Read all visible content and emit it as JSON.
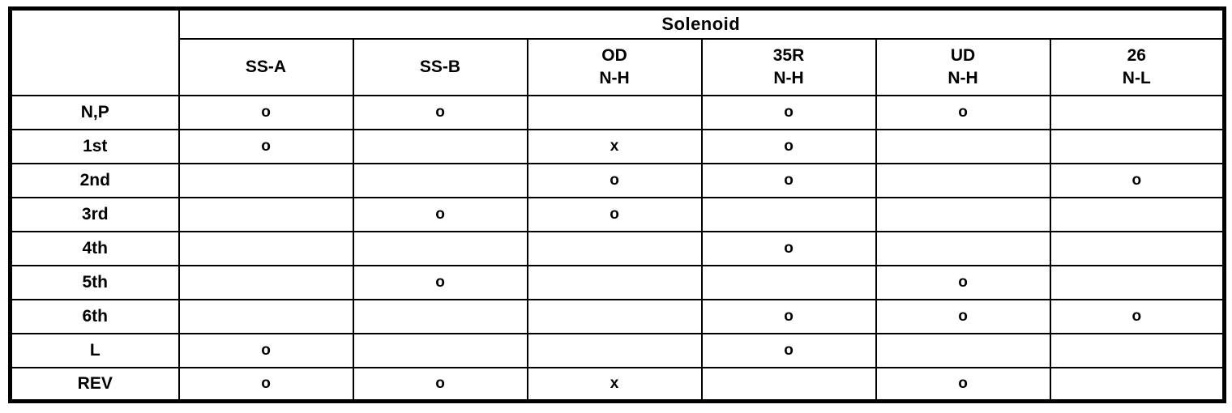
{
  "page": {
    "background_color": "#ffffff",
    "border_color": "#000000"
  },
  "table": {
    "group_header": "Solenoid",
    "corner_label": "",
    "columns": [
      {
        "line1": "SS-A",
        "line2": ""
      },
      {
        "line1": "SS-B",
        "line2": ""
      },
      {
        "line1": "OD",
        "line2": "N-H"
      },
      {
        "line1": "35R",
        "line2": "N-H"
      },
      {
        "line1": "UD",
        "line2": "N-H"
      },
      {
        "line1": "26",
        "line2": "N-L"
      }
    ],
    "rows": [
      {
        "label": "N,P",
        "marks": [
          "o",
          "o",
          "",
          "o",
          "o",
          ""
        ]
      },
      {
        "label": "1st",
        "marks": [
          "o",
          "",
          "x",
          "o",
          "",
          ""
        ]
      },
      {
        "label": "2nd",
        "marks": [
          "",
          "",
          "o",
          "o",
          "",
          "o"
        ]
      },
      {
        "label": "3rd",
        "marks": [
          "",
          "o",
          "o",
          "",
          "",
          ""
        ]
      },
      {
        "label": "4th",
        "marks": [
          "",
          "",
          "",
          "o",
          "",
          ""
        ]
      },
      {
        "label": "5th",
        "marks": [
          "",
          "o",
          "",
          "",
          "o",
          ""
        ]
      },
      {
        "label": "6th",
        "marks": [
          "",
          "",
          "",
          "o",
          "o",
          "o"
        ]
      },
      {
        "label": "L",
        "marks": [
          "o",
          "",
          "",
          "o",
          "",
          ""
        ]
      },
      {
        "label": "REV",
        "marks": [
          "o",
          "o",
          "x",
          "",
          "o",
          ""
        ]
      }
    ]
  }
}
